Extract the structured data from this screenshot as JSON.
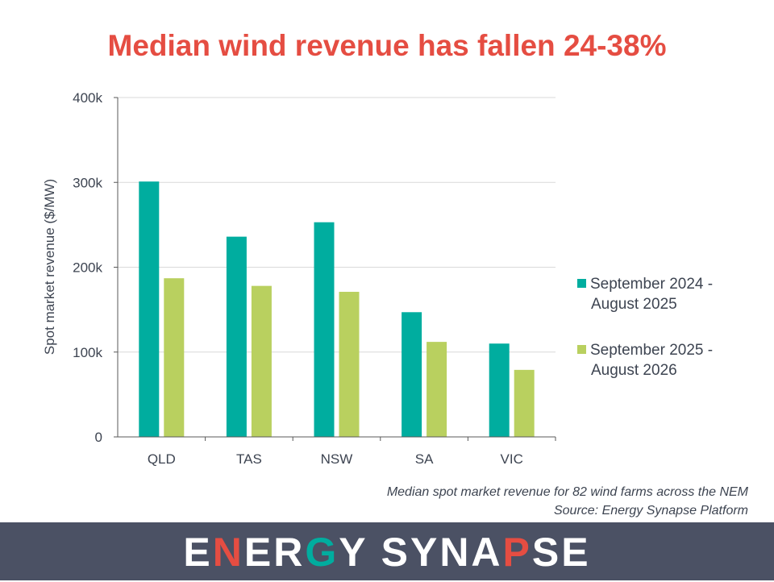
{
  "colors": {
    "title": "#e54d42",
    "series1": "#00ad9f",
    "series2": "#b9d05f",
    "footer_bg": "#4b5164",
    "logo_text": "#ffffff",
    "logo_accent_red": "#e54d42",
    "logo_accent_teal": "#00ad9f"
  },
  "chart_data": {
    "type": "bar",
    "title": "Median wind revenue has fallen 24-38%",
    "ylabel": "Spot market revenue ($/MW)",
    "xlabel": "",
    "categories": [
      "QLD",
      "TAS",
      "NSW",
      "SA",
      "VIC"
    ],
    "series": [
      {
        "name": "September 2024 - August 2025",
        "values": [
          301000,
          236000,
          253000,
          147000,
          110000
        ]
      },
      {
        "name": "September 2025 - August 2026",
        "values": [
          187000,
          178000,
          171000,
          112000,
          79000
        ]
      }
    ],
    "ylim": [
      0,
      400000
    ],
    "yticks": [
      0,
      100000,
      200000,
      300000,
      400000
    ],
    "ytick_labels": [
      "0",
      "100k",
      "200k",
      "300k",
      "400k"
    ],
    "grid": true,
    "legend_position": "right"
  },
  "legend": {
    "series1_line1": "September 2024 -",
    "series1_line2": "August 2025",
    "series2_line1": "September 2025 -",
    "series2_line2": "August 2026"
  },
  "footnote": {
    "note": "Median spot market revenue for 82 wind farms across the NEM",
    "source": "Source: Energy Synapse Platform"
  },
  "footer": {
    "logo_text": "ENERGY SYNAPSE"
  }
}
